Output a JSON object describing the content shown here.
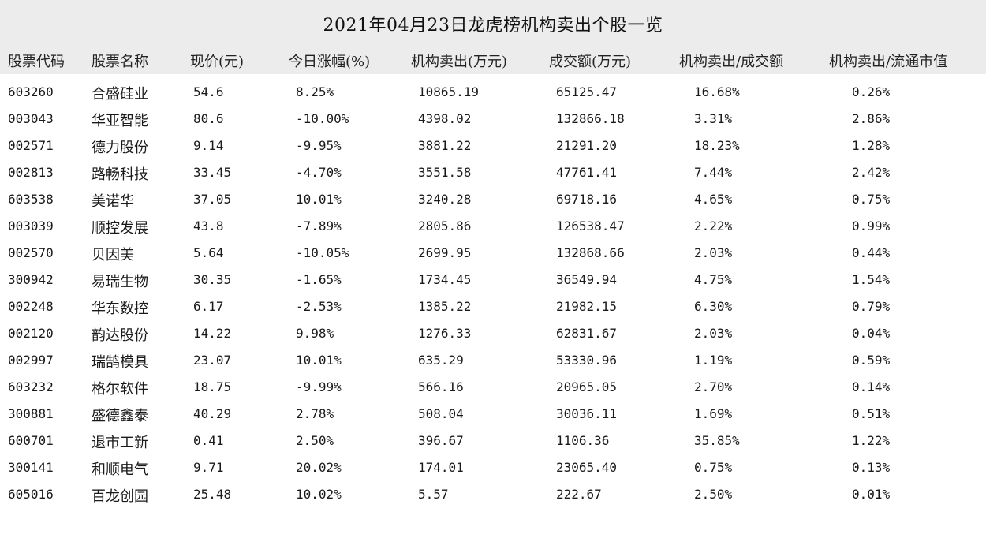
{
  "chart_data": {
    "type": "table",
    "title": "2021年04月23日龙虎榜机构卖出个股一览",
    "columns": [
      "股票代码",
      "股票名称",
      "现价(元)",
      "今日涨幅(%)",
      "机构卖出(万元)",
      "成交额(万元)",
      "机构卖出/成交额",
      "机构卖出/流通市值"
    ],
    "rows": [
      [
        "603260",
        "合盛硅业",
        "54.6",
        "8.25%",
        "10865.19",
        "65125.47",
        "16.68%",
        "0.26%"
      ],
      [
        "003043",
        "华亚智能",
        "80.6",
        "-10.00%",
        "4398.02",
        "132866.18",
        "3.31%",
        "2.86%"
      ],
      [
        "002571",
        "德力股份",
        "9.14",
        "-9.95%",
        "3881.22",
        "21291.20",
        "18.23%",
        "1.28%"
      ],
      [
        "002813",
        "路畅科技",
        "33.45",
        "-4.70%",
        "3551.58",
        "47761.41",
        "7.44%",
        "2.42%"
      ],
      [
        "603538",
        "美诺华",
        "37.05",
        "10.01%",
        "3240.28",
        "69718.16",
        "4.65%",
        "0.75%"
      ],
      [
        "003039",
        "顺控发展",
        "43.8",
        "-7.89%",
        "2805.86",
        "126538.47",
        "2.22%",
        "0.99%"
      ],
      [
        "002570",
        "贝因美",
        "5.64",
        "-10.05%",
        "2699.95",
        "132868.66",
        "2.03%",
        "0.44%"
      ],
      [
        "300942",
        "易瑞生物",
        "30.35",
        "-1.65%",
        "1734.45",
        "36549.94",
        "4.75%",
        "1.54%"
      ],
      [
        "002248",
        "华东数控",
        "6.17",
        "-2.53%",
        "1385.22",
        "21982.15",
        "6.30%",
        "0.79%"
      ],
      [
        "002120",
        "韵达股份",
        "14.22",
        "9.98%",
        "1276.33",
        "62831.67",
        "2.03%",
        "0.04%"
      ],
      [
        "002997",
        "瑞鹄模具",
        "23.07",
        "10.01%",
        "635.29",
        "53330.96",
        "1.19%",
        "0.59%"
      ],
      [
        "603232",
        "格尔软件",
        "18.75",
        "-9.99%",
        "566.16",
        "20965.05",
        "2.70%",
        "0.14%"
      ],
      [
        "300881",
        "盛德鑫泰",
        "40.29",
        "2.78%",
        "508.04",
        "30036.11",
        "1.69%",
        "0.51%"
      ],
      [
        "600701",
        "退市工新",
        "0.41",
        "2.50%",
        "396.67",
        "1106.36",
        "35.85%",
        "1.22%"
      ],
      [
        "300141",
        "和顺电气",
        "9.71",
        "20.02%",
        "174.01",
        "23065.40",
        "0.75%",
        "0.13%"
      ],
      [
        "605016",
        "百龙创园",
        "25.48",
        "10.02%",
        "5.57",
        "222.67",
        "2.50%",
        "0.01%"
      ]
    ]
  }
}
